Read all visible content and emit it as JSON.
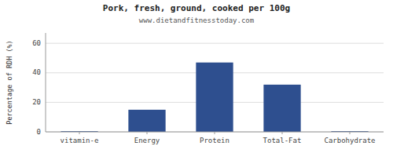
{
  "chart_data": {
    "type": "bar",
    "title": "Pork, fresh, ground, cooked per 100g",
    "subtitle": "www.dietandfitnesstoday.com",
    "categories": [
      "vitamin-e",
      "Energy",
      "Protein",
      "Total-Fat",
      "Carbohydrate"
    ],
    "values": [
      0.5,
      15,
      47,
      32,
      0.5
    ],
    "color": "#2e4f8f",
    "ylabel": "Percentage of RDH (%)",
    "ylim": [
      0,
      67
    ],
    "yticks": [
      0,
      20,
      40,
      60
    ],
    "grid": true
  }
}
